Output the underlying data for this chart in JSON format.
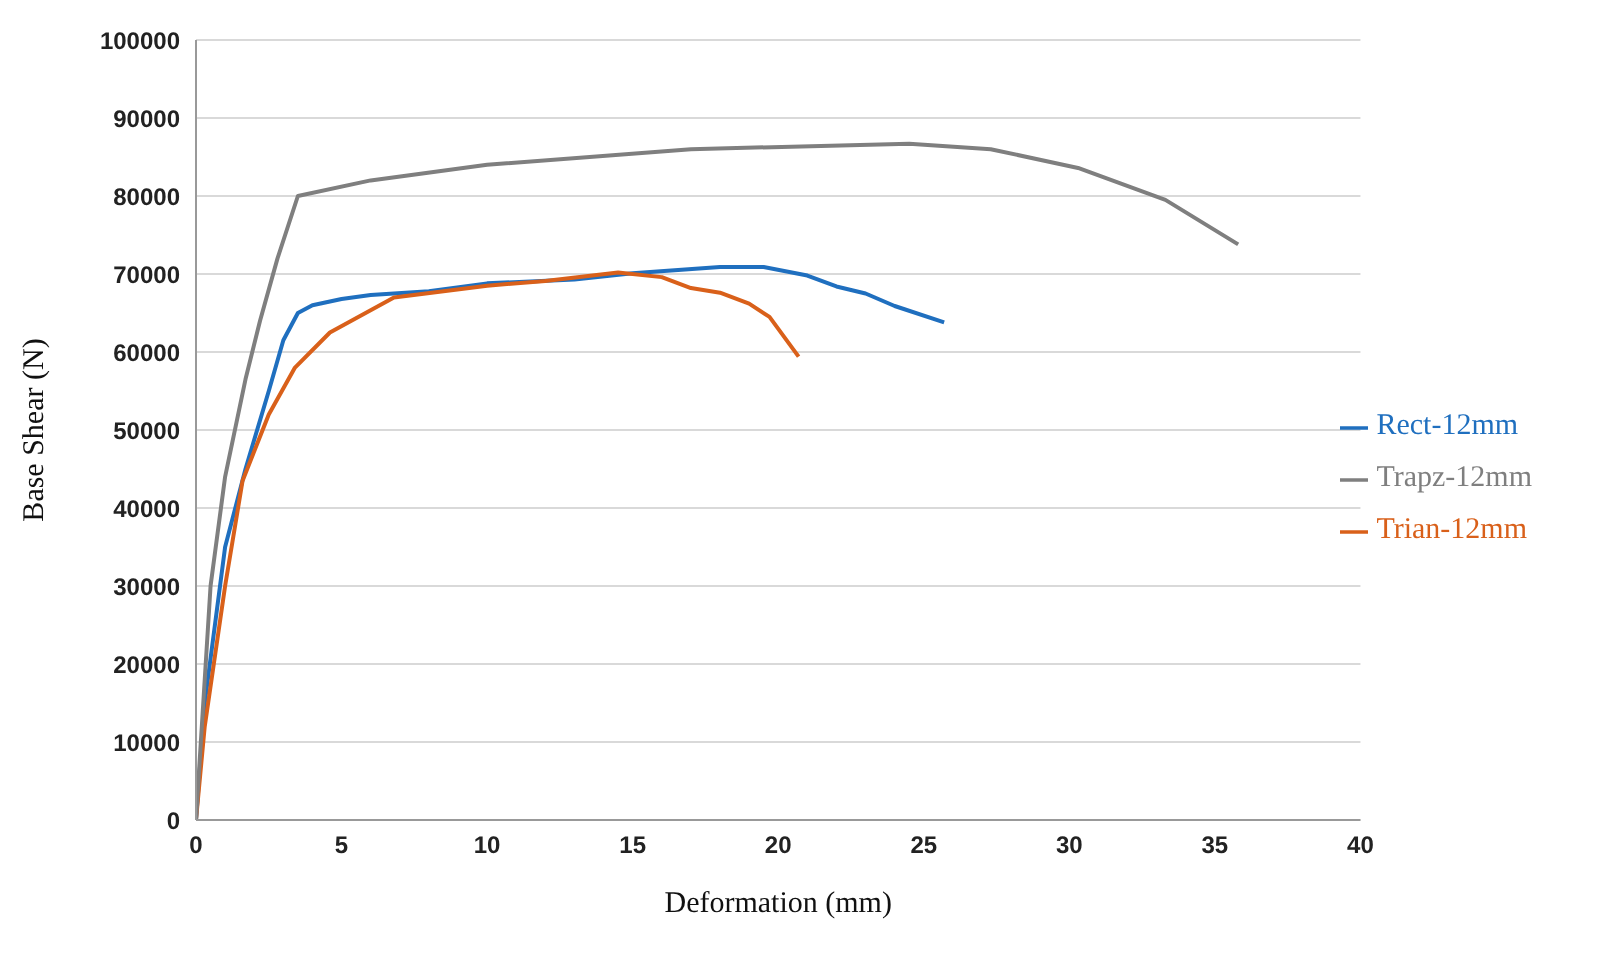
{
  "chart_data": {
    "type": "line",
    "xlabel": "Deformation (mm)",
    "ylabel": "Base Shear (N)",
    "xlim": [
      0,
      40
    ],
    "xticks": [
      0,
      5,
      10,
      15,
      20,
      25,
      30,
      35,
      40
    ],
    "ylim": [
      0,
      100000
    ],
    "yticks": [
      0,
      10000,
      20000,
      30000,
      40000,
      50000,
      60000,
      70000,
      80000,
      90000,
      100000
    ],
    "grid": "y",
    "legend": "right",
    "marker": "none",
    "series": [
      {
        "name": "Rect-12mm",
        "color": "#1f6fbf",
        "x": [
          0,
          0.3,
          1,
          1.7,
          2.5,
          3,
          3.5,
          4,
          5,
          6,
          8,
          10,
          13,
          15,
          18,
          19.5,
          21,
          22,
          23,
          24,
          25.7
        ],
        "values": [
          0,
          15000,
          35000,
          45000,
          55000,
          61500,
          65000,
          66000,
          66800,
          67300,
          67800,
          68800,
          69300,
          70100,
          70900,
          70900,
          69800,
          68400,
          67500,
          65900,
          63800
        ]
      },
      {
        "name": "Trian-12mm",
        "color": "#d9601a",
        "x": [
          0,
          0.3,
          1,
          1.6,
          2.5,
          3.4,
          4.6,
          6.8,
          10,
          12,
          14.5,
          16,
          17,
          18,
          19,
          19.7,
          20.7
        ],
        "values": [
          0,
          12000,
          30000,
          43500,
          52000,
          58000,
          62500,
          67000,
          68500,
          69100,
          70200,
          69600,
          68200,
          67600,
          66200,
          64500,
          59400
        ]
      },
      {
        "name": "Trapz-12mm",
        "color": "#7f7f7f",
        "x": [
          0,
          0.5,
          1,
          1.7,
          2.2,
          2.8,
          3.5,
          6,
          10,
          17,
          24.5,
          27.3,
          30.3,
          33.3,
          35.8
        ],
        "values": [
          0,
          30000,
          44000,
          56500,
          64000,
          72000,
          80000,
          82000,
          84000,
          86000,
          86700,
          86000,
          83600,
          79500,
          73800
        ]
      }
    ]
  }
}
